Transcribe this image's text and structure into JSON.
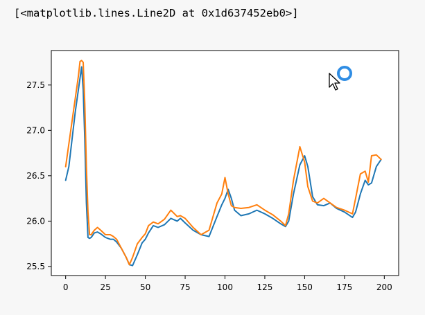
{
  "output": {
    "repr": "[<matplotlib.lines.Line2D at 0x1d637452eb0>]"
  },
  "chart_data": {
    "type": "line",
    "title": "",
    "xlabel": "",
    "ylabel": "",
    "xlim": [
      -9,
      209
    ],
    "ylim": [
      25.4,
      27.88
    ],
    "xticks": [
      0,
      25,
      50,
      75,
      100,
      125,
      150,
      175,
      200
    ],
    "yticks": [
      25.5,
      26.0,
      26.5,
      27.0,
      27.5
    ],
    "xtick_labels": [
      "0",
      "25",
      "50",
      "75",
      "100",
      "125",
      "150",
      "175",
      "200"
    ],
    "ytick_labels": [
      "25.5",
      "26.0",
      "26.5",
      "27.0",
      "27.5"
    ],
    "grid": false,
    "series": [
      {
        "color": "#1f77b4",
        "x": [
          0,
          2,
          4,
          6,
          8,
          10,
          11,
          12,
          13,
          14,
          15,
          16,
          18,
          20,
          22,
          25,
          28,
          30,
          32,
          35,
          38,
          40,
          42,
          45,
          48,
          50,
          52,
          55,
          58,
          62,
          66,
          70,
          72,
          75,
          80,
          85,
          90,
          95,
          98,
          100,
          102,
          104,
          106,
          110,
          115,
          120,
          125,
          130,
          135,
          138,
          140,
          143,
          147,
          150,
          152,
          155,
          158,
          162,
          166,
          170,
          175,
          180,
          182,
          185,
          188,
          190,
          192,
          195,
          198
        ],
        "y": [
          26.45,
          26.6,
          26.9,
          27.2,
          27.45,
          27.7,
          27.45,
          26.9,
          26.2,
          25.82,
          25.81,
          25.82,
          25.87,
          25.88,
          25.86,
          25.82,
          25.8,
          25.8,
          25.77,
          25.7,
          25.6,
          25.52,
          25.51,
          25.63,
          25.76,
          25.8,
          25.87,
          25.95,
          25.93,
          25.96,
          26.03,
          26.0,
          26.03,
          25.98,
          25.9,
          25.85,
          25.83,
          26.05,
          26.18,
          26.25,
          26.35,
          26.25,
          26.12,
          26.06,
          26.08,
          26.12,
          26.08,
          26.03,
          25.97,
          25.94,
          26.0,
          26.3,
          26.62,
          26.72,
          26.6,
          26.27,
          26.18,
          26.17,
          26.2,
          26.14,
          26.1,
          26.04,
          26.1,
          26.3,
          26.45,
          26.4,
          26.42,
          26.6,
          26.68
        ]
      },
      {
        "color": "#ff7f0e",
        "x": [
          0,
          2,
          4,
          6,
          8,
          9,
          10,
          11,
          12,
          13,
          14,
          15,
          16,
          18,
          20,
          22,
          25,
          28,
          30,
          32,
          35,
          38,
          40,
          42,
          45,
          48,
          50,
          52,
          55,
          58,
          62,
          66,
          70,
          72,
          75,
          80,
          85,
          90,
          95,
          98,
          100,
          102,
          104,
          106,
          110,
          115,
          120,
          125,
          130,
          135,
          138,
          140,
          143,
          147,
          150,
          152,
          155,
          158,
          162,
          166,
          170,
          175,
          180,
          182,
          185,
          188,
          190,
          192,
          195,
          198
        ],
        "y": [
          26.6,
          26.85,
          27.1,
          27.35,
          27.6,
          27.76,
          27.77,
          27.75,
          27.3,
          26.6,
          26.1,
          25.85,
          25.85,
          25.9,
          25.93,
          25.9,
          25.85,
          25.85,
          25.83,
          25.8,
          25.7,
          25.6,
          25.52,
          25.6,
          25.75,
          25.82,
          25.86,
          25.95,
          25.99,
          25.97,
          26.02,
          26.12,
          26.05,
          26.06,
          26.03,
          25.93,
          25.85,
          25.9,
          26.2,
          26.3,
          26.48,
          26.3,
          26.17,
          26.15,
          26.14,
          26.15,
          26.18,
          26.12,
          26.07,
          26.0,
          25.95,
          26.08,
          26.45,
          26.82,
          26.65,
          26.38,
          26.22,
          26.2,
          26.25,
          26.2,
          26.15,
          26.12,
          26.08,
          26.25,
          26.52,
          26.55,
          26.43,
          26.72,
          26.73,
          26.68
        ]
      }
    ]
  }
}
